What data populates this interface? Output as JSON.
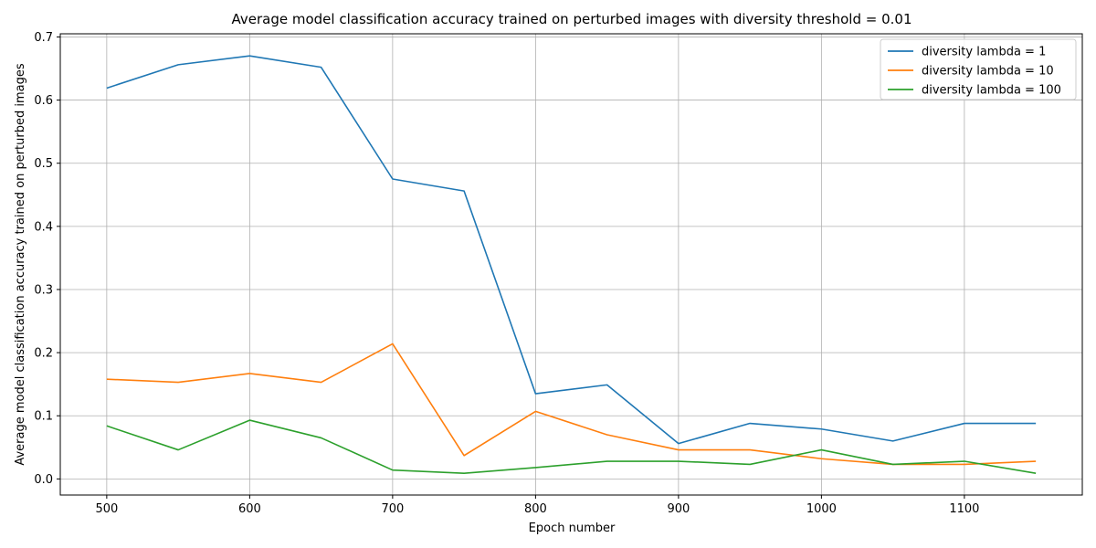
{
  "chart_data": {
    "type": "line",
    "title": "Average model classification accuracy trained on perturbed images with diversity threshold = 0.01",
    "xlabel": "Epoch number",
    "ylabel": "Average model classification accuracy trained on perturbed images",
    "x": [
      500,
      550,
      600,
      650,
      700,
      750,
      800,
      850,
      900,
      950,
      1000,
      1050,
      1100,
      1150
    ],
    "xlim": [
      467.5,
      1182.5
    ],
    "ylim": [
      -0.0255,
      0.705
    ],
    "xticks": [
      500,
      600,
      700,
      800,
      900,
      1000,
      1100
    ],
    "yticks": [
      0.0,
      0.1,
      0.2,
      0.3,
      0.4,
      0.5,
      0.6,
      0.7
    ],
    "ytick_labels": [
      "0.0",
      "0.1",
      "0.2",
      "0.3",
      "0.4",
      "0.5",
      "0.6",
      "0.7"
    ],
    "grid": true,
    "legend_position": "top-right",
    "series": [
      {
        "name": "diversity lambda = 1",
        "color": "#1f77b4",
        "values": [
          0.619,
          0.656,
          0.67,
          0.652,
          0.475,
          0.456,
          0.135,
          0.149,
          0.056,
          0.088,
          0.079,
          0.06,
          0.088,
          0.088
        ]
      },
      {
        "name": "diversity lambda = 10",
        "color": "#ff7f0e",
        "values": [
          0.158,
          0.153,
          0.167,
          0.153,
          0.214,
          0.037,
          0.107,
          0.07,
          0.046,
          0.046,
          0.032,
          0.023,
          0.023,
          0.028
        ]
      },
      {
        "name": "diversity lambda = 100",
        "color": "#2ca02c",
        "values": [
          0.084,
          0.046,
          0.093,
          0.065,
          0.014,
          0.009,
          0.018,
          0.028,
          0.028,
          0.023,
          0.046,
          0.023,
          0.028,
          0.009
        ]
      }
    ]
  }
}
